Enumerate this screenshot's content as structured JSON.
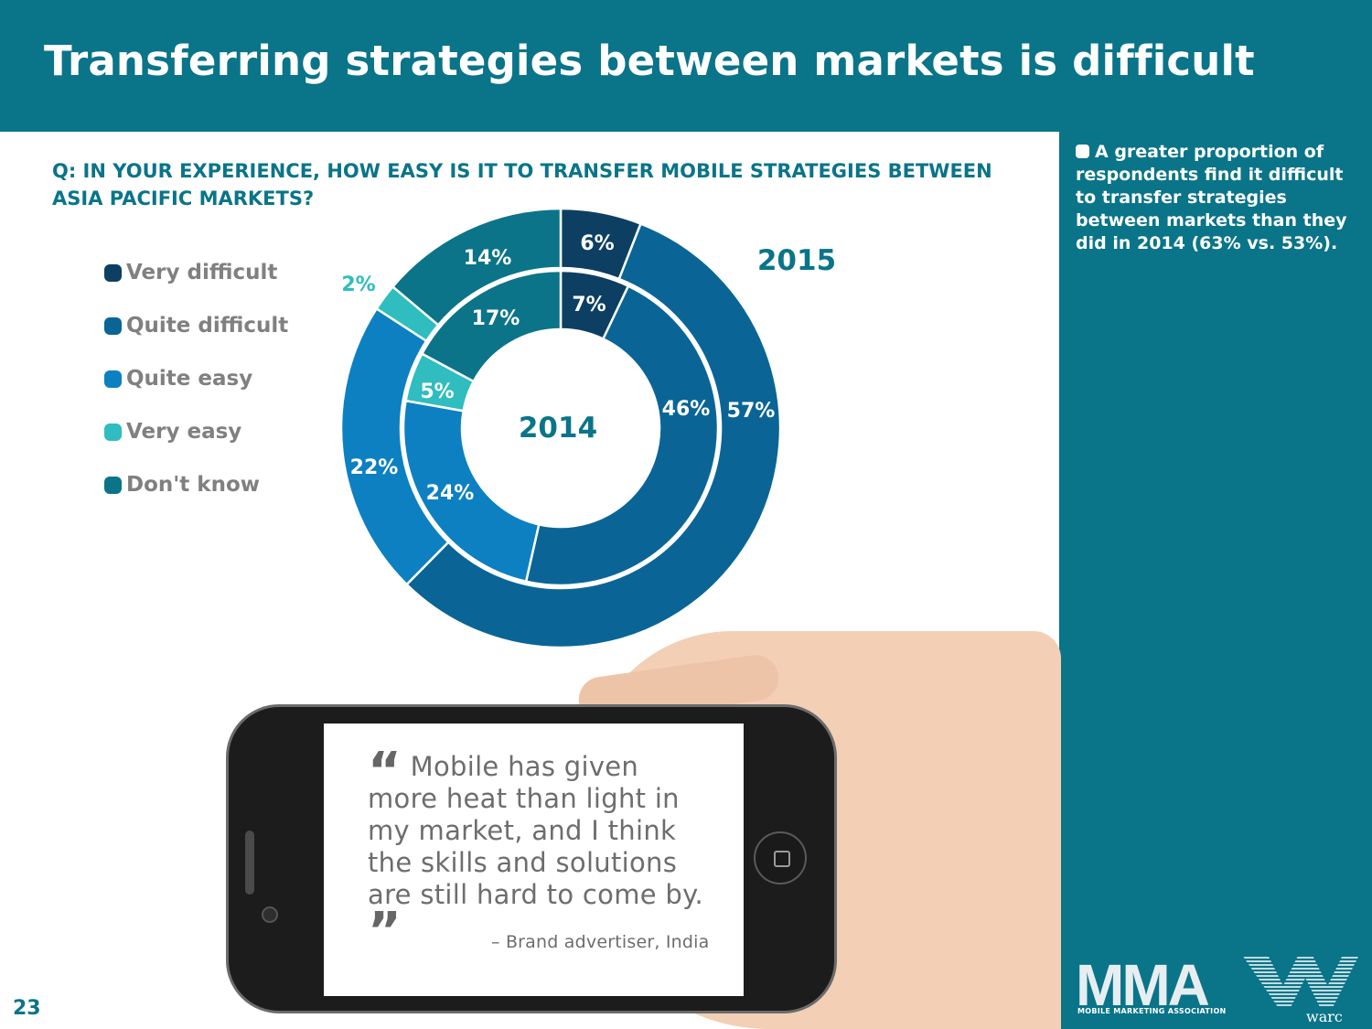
{
  "header": {
    "title": "Transferring strategies between markets is difficult"
  },
  "sidebar": {
    "note": "A greater proportion of respondents find it difficult to transfer strategies between markets than they did in 2014 (63% vs. 53%)."
  },
  "question": "Q: IN YOUR EXPERIENCE, HOW EASY IS IT TO TRANSFER MOBILE STRATEGIES BETWEEN ASIA PACIFIC MARKETS?",
  "colors": {
    "header": "#0a7489",
    "very_difficult": "#0d3f63",
    "quite_difficult": "#0a6596",
    "quite_easy": "#0d80c2",
    "very_easy": "#2fbdbf",
    "dont_know": "#0c7489"
  },
  "chart_data": {
    "type": "pie",
    "subtype": "nested-donut",
    "categories": [
      "Very difficult",
      "Quite difficult",
      "Quite easy",
      "Very easy",
      "Don't know"
    ],
    "series": [
      {
        "name": "2015",
        "values": [
          6,
          57,
          22,
          2,
          14
        ],
        "labels": [
          "6%",
          "57%",
          "22%",
          "2%",
          "14%"
        ]
      },
      {
        "name": "2014",
        "values": [
          7,
          46,
          24,
          5,
          17
        ],
        "labels": [
          "7%",
          "46%",
          "24%",
          "5%",
          "17%"
        ]
      }
    ],
    "legend_position": "left"
  },
  "quote": {
    "text": "Mobile has given more heat than light in my market, and I think the skills and solutions are still hard to come by.",
    "attribution": "– Brand advertiser, India",
    "open_mark": "“",
    "close_mark": "”"
  },
  "page_number": "23",
  "logos": {
    "mma": "MMA",
    "mma_sub": "MOBILE MARKETING ASSOCIATION",
    "warc": "warc"
  }
}
